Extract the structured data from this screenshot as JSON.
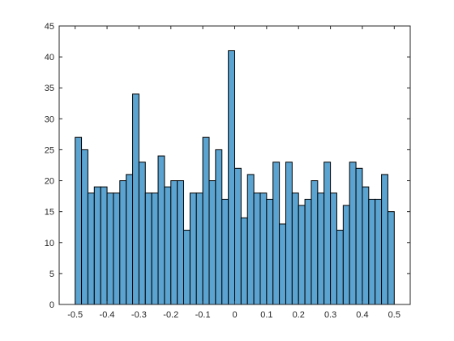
{
  "colors": {
    "bar_fill": "#5ba3d0",
    "bar_edge": "#000000",
    "axis": "#262626",
    "background": "#ffffff"
  },
  "chart_data": {
    "type": "bar",
    "title": "",
    "xlabel": "",
    "ylabel": "",
    "grid": false,
    "legend": "none",
    "xlim": [
      -0.55,
      0.55
    ],
    "ylim": [
      0,
      45
    ],
    "bin_width": 0.02,
    "x": [
      -0.49,
      -0.47,
      -0.45,
      -0.43,
      -0.41,
      -0.39,
      -0.37,
      -0.35,
      -0.33,
      -0.31,
      -0.29,
      -0.27,
      -0.25,
      -0.23,
      -0.21,
      -0.19,
      -0.17,
      -0.15,
      -0.13,
      -0.11,
      -0.09,
      -0.07,
      -0.05,
      -0.03,
      -0.01,
      0.01,
      0.03,
      0.05,
      0.07,
      0.09,
      0.11,
      0.13,
      0.15,
      0.17,
      0.19,
      0.21,
      0.23,
      0.25,
      0.27,
      0.29,
      0.31,
      0.33,
      0.35,
      0.37,
      0.39,
      0.41,
      0.43,
      0.45,
      0.47,
      0.49
    ],
    "values": [
      27,
      25,
      18,
      19,
      19,
      18,
      18,
      20,
      21,
      34,
      23,
      18,
      18,
      24,
      19,
      20,
      20,
      12,
      18,
      18,
      27,
      20,
      25,
      17,
      41,
      22,
      14,
      21,
      18,
      18,
      17,
      23,
      13,
      23,
      18,
      16,
      17,
      20,
      18,
      23,
      18,
      12,
      16,
      23,
      22,
      19,
      17,
      17,
      21,
      15
    ],
    "xticks": [
      -0.5,
      -0.4,
      -0.3,
      -0.2,
      -0.1,
      0,
      0.1,
      0.2,
      0.3,
      0.4,
      0.5
    ],
    "xtick_labels": [
      "-0.5",
      "-0.4",
      "-0.3",
      "-0.2",
      "-0.1",
      "0",
      "0.1",
      "0.2",
      "0.3",
      "0.4",
      "0.5"
    ],
    "yticks": [
      0,
      5,
      10,
      15,
      20,
      25,
      30,
      35,
      40,
      45
    ],
    "ytick_labels": [
      "0",
      "5",
      "10",
      "15",
      "20",
      "25",
      "30",
      "35",
      "40",
      "45"
    ]
  }
}
